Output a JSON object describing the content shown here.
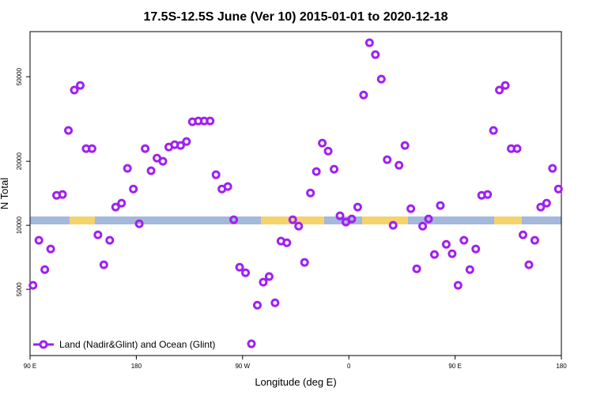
{
  "chart_data": {
    "type": "scatter",
    "title": "17.5S-12.5S June (Ver 10)   2015-01-01 to 2020-12-18",
    "xlabel": "Longitude (deg E)",
    "ylabel": "N Total",
    "log_y": true,
    "legend": "bottom-left",
    "xlim": [
      90,
      540
    ],
    "ylim": [
      2440,
      81500
    ],
    "xticks": [
      {
        "value": 90,
        "label": "90 E"
      },
      180,
      {
        "value": 270,
        "label": "90 W"
      },
      {
        "value": 360,
        "label": "0"
      },
      {
        "value": 450,
        "label": "90 E"
      },
      {
        "value": 540,
        "label": "180"
      }
    ],
    "yticks": [
      5000,
      10000,
      20000,
      50000
    ],
    "x": [
      92.5,
      97.5,
      102.5,
      107.5,
      112.5,
      117.5,
      122.5,
      127.5,
      132.5,
      137.5,
      142.5,
      147.5,
      152.5,
      157.5,
      162.5,
      167.5,
      172.5,
      177.5,
      182.5,
      187.5,
      192.5,
      197.5,
      202.5,
      207.5,
      212.5,
      217.5,
      222.5,
      227.5,
      232.5,
      237.5,
      242.5,
      247.5,
      252.5,
      257.5,
      262.5,
      267.5,
      272.5,
      277.5,
      282.5,
      287.5,
      292.5,
      297.5,
      302.5,
      307.5,
      312.5,
      317.5,
      322.5,
      327.5,
      332.5,
      337.5,
      342.5,
      347.5,
      352.5,
      357.5,
      362.5,
      367.5,
      372.5,
      377.5,
      382.5,
      387.5,
      392.5,
      397.5,
      402.5,
      407.5,
      412.5,
      417.5,
      422.5,
      427.5,
      432.5,
      437.5,
      442.5,
      447.5,
      452.5,
      457.5,
      462.5,
      467.5,
      472.5,
      477.5,
      482.5,
      487.5,
      492.5,
      497.5,
      502.5,
      507.5,
      512.5,
      517.5,
      522.5,
      527.5,
      532.5,
      537.5
    ],
    "series": [
      {
        "name": "Land (Nadir&Glint) and Ocean (Glint)",
        "color": "#a020f0",
        "values": [
          5220,
          8500,
          6190,
          7740,
          13840,
          13960,
          27930,
          43250,
          45500,
          22940,
          22940,
          9020,
          6520,
          8500,
          12180,
          12710,
          18520,
          14820,
          10170,
          22940,
          18050,
          20700,
          20000,
          23330,
          23940,
          23740,
          24770,
          30690,
          30960,
          30960,
          30960,
          17290,
          14820,
          15210,
          10620,
          6350,
          5980,
          2770,
          4210,
          5400,
          5740,
          4320,
          8430,
          8280,
          10620,
          9910,
          6690,
          14200,
          17900,
          24360,
          22340,
          18360,
          11080,
          10350,
          10710,
          12180,
          41000,
          72200,
          63500,
          48700,
          20350,
          10000,
          19160,
          23740,
          11970,
          6240,
          9910,
          10710,
          7290,
          12390,
          8140,
          7350,
          5220,
          8500,
          6190,
          7740,
          13840,
          13960,
          27930,
          43250,
          45500,
          22940,
          22940,
          9020,
          6520,
          8500,
          12180,
          12710,
          18520,
          14820
        ]
      }
    ]
  }
}
